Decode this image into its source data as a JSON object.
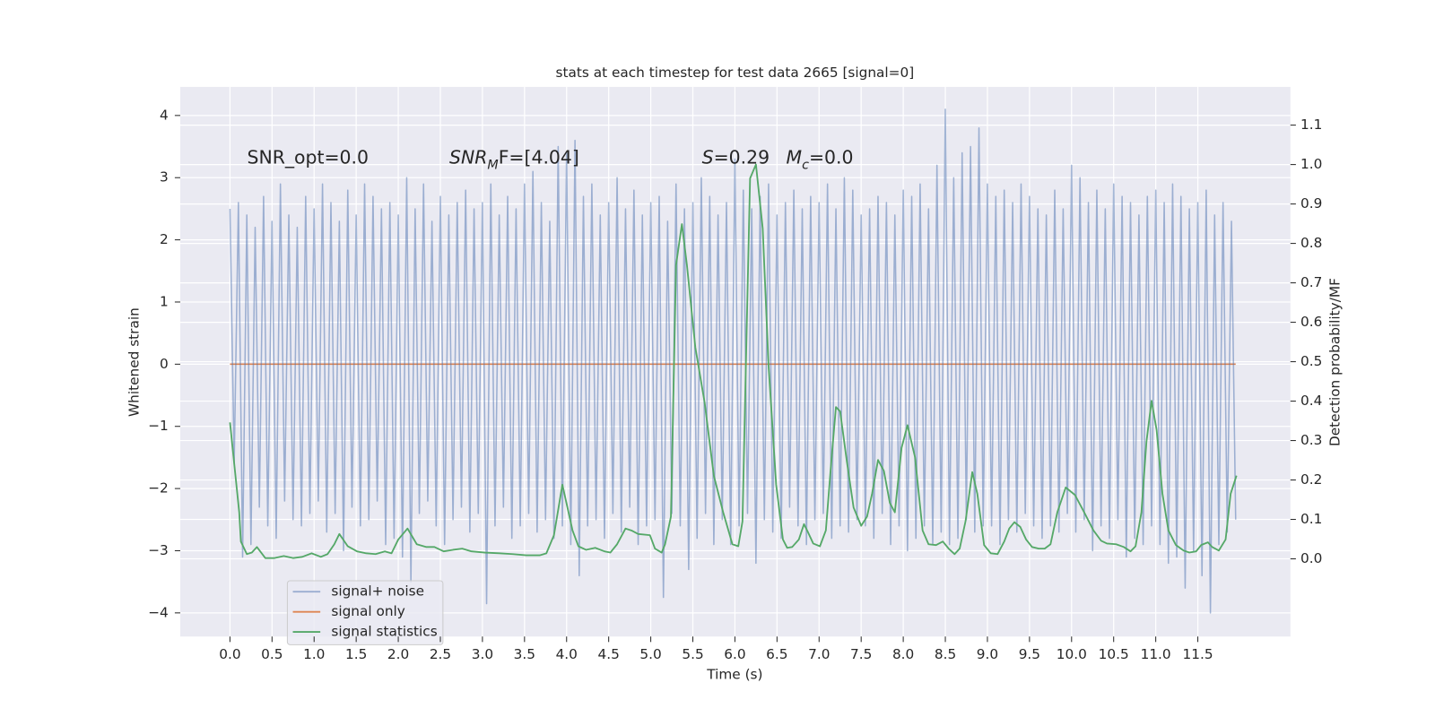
{
  "chart_data": {
    "type": "line",
    "title": "stats at each timestep for test data 2665 [signal=0]",
    "xlabel": "Time (s)",
    "ylabel": "Whitened strain",
    "y2label": "Detection probability/MF",
    "xlim": [
      -0.59,
      12.6
    ],
    "ylim": [
      -4.38,
      4.46
    ],
    "y2lim": [
      -0.197,
      1.197
    ],
    "xticks": [
      {
        "value": 0,
        "label": "0.0"
      },
      0.5,
      {
        "value": 1,
        "label": "1.0"
      },
      1.5,
      {
        "value": 2,
        "label": "2.0"
      },
      2.5,
      {
        "value": 3,
        "label": "3.0"
      },
      3.5,
      {
        "value": 4,
        "label": "4.0"
      },
      4.5,
      {
        "value": 5,
        "label": "5.0"
      },
      5.5,
      {
        "value": 6,
        "label": "6.0"
      },
      6.5,
      {
        "value": 7,
        "label": "7.0"
      },
      7.5,
      {
        "value": 8,
        "label": "8.0"
      },
      8.5,
      {
        "value": 9,
        "label": "9.0"
      },
      9.5,
      {
        "value": 10,
        "label": "10.0"
      },
      10.5,
      {
        "value": 11,
        "label": "11.0"
      },
      11.5
    ],
    "yticks": [
      {
        "value": -4,
        "label": "−4"
      },
      {
        "value": -3,
        "label": "−3"
      },
      {
        "value": -2,
        "label": "−2"
      },
      {
        "value": -1,
        "label": "−1"
      },
      0,
      1,
      2,
      3,
      4
    ],
    "y2ticks": [
      {
        "value": 0,
        "label": "0.0"
      },
      0.1,
      0.2,
      0.3,
      0.4,
      0.5,
      0.6,
      0.7,
      0.8,
      0.9,
      {
        "value": 1,
        "label": "1.0"
      },
      1.1
    ],
    "grid": true,
    "legend_loc": "lower left",
    "annotations": [
      [
        {
          "text": "SNR_opt=0.0"
        }
      ],
      [
        {
          "text": "SNR",
          "style": "italic"
        },
        {
          "text": "M",
          "style": "italic-sub"
        },
        {
          "text": "F=[4.04]"
        }
      ],
      [
        {
          "text": "S",
          "style": "italic"
        },
        {
          "text": "=0.29"
        }
      ],
      [
        {
          "text": "M",
          "style": "italic"
        },
        {
          "text": "c",
          "style": "italic-sub"
        },
        {
          "text": "=0.0"
        }
      ]
    ],
    "series": [
      {
        "name": "signal+ noise",
        "color": "#4c72b0",
        "alpha": 0.5,
        "axis": "y",
        "x": [
          0,
          0.05,
          0.1,
          0.15,
          0.2,
          0.25,
          0.3,
          0.35,
          0.4,
          0.45,
          0.5,
          0.55,
          0.6,
          0.65,
          0.7,
          0.75,
          0.8,
          0.85,
          0.9,
          0.95,
          1,
          1.05,
          1.1,
          1.15,
          1.2,
          1.25,
          1.3,
          1.35,
          1.4,
          1.45,
          1.5,
          1.55,
          1.6,
          1.65,
          1.7,
          1.75,
          1.8,
          1.85,
          1.9,
          1.95,
          2,
          2.05,
          2.1,
          2.15,
          2.2,
          2.25,
          2.3,
          2.35,
          2.4,
          2.45,
          2.5,
          2.55,
          2.6,
          2.65,
          2.7,
          2.75,
          2.8,
          2.85,
          2.9,
          2.95,
          3,
          3.05,
          3.1,
          3.15,
          3.2,
          3.25,
          3.3,
          3.35,
          3.4,
          3.45,
          3.5,
          3.55,
          3.6,
          3.65,
          3.7,
          3.75,
          3.8,
          3.85,
          3.9,
          3.95,
          4,
          4.05,
          4.1,
          4.15,
          4.2,
          4.25,
          4.3,
          4.35,
          4.4,
          4.45,
          4.5,
          4.55,
          4.6,
          4.65,
          4.7,
          4.75,
          4.8,
          4.85,
          4.9,
          4.95,
          5,
          5.05,
          5.1,
          5.15,
          5.2,
          5.25,
          5.3,
          5.35,
          5.4,
          5.45,
          5.5,
          5.55,
          5.6,
          5.65,
          5.7,
          5.75,
          5.8,
          5.85,
          5.9,
          5.95,
          6,
          6.05,
          6.1,
          6.15,
          6.2,
          6.25,
          6.3,
          6.35,
          6.4,
          6.45,
          6.5,
          6.55,
          6.6,
          6.65,
          6.7,
          6.75,
          6.8,
          6.85,
          6.9,
          6.95,
          7,
          7.05,
          7.1,
          7.15,
          7.2,
          7.25,
          7.3,
          7.35,
          7.4,
          7.45,
          7.5,
          7.55,
          7.6,
          7.65,
          7.7,
          7.75,
          7.8,
          7.85,
          7.9,
          7.95,
          8,
          8.05,
          8.1,
          8.15,
          8.2,
          8.25,
          8.3,
          8.35,
          8.4,
          8.45,
          8.5,
          8.55,
          8.6,
          8.65,
          8.7,
          8.75,
          8.8,
          8.85,
          8.9,
          8.95,
          9,
          9.05,
          9.1,
          9.15,
          9.2,
          9.25,
          9.3,
          9.35,
          9.4,
          9.45,
          9.5,
          9.55,
          9.6,
          9.65,
          9.7,
          9.75,
          9.8,
          9.85,
          9.9,
          9.95,
          10,
          10.05,
          10.1,
          10.15,
          10.2,
          10.25,
          10.3,
          10.35,
          10.4,
          10.45,
          10.5,
          10.55,
          10.6,
          10.65,
          10.7,
          10.75,
          10.8,
          10.85,
          10.9,
          10.95,
          11,
          11.05,
          11.1,
          11.15,
          11.2,
          11.25,
          11.3,
          11.35,
          11.4,
          11.45,
          11.5,
          11.55,
          11.6,
          11.65,
          11.7,
          11.75,
          11.8,
          11.85,
          11.9,
          11.95
        ],
        "values": [
          2.5,
          -1.6,
          2.6,
          -3.1,
          2.4,
          -2.9,
          2.2,
          -2.3,
          2.7,
          -2.6,
          2.3,
          -2.8,
          2.9,
          -2.2,
          2.4,
          -2.5,
          2.2,
          -2.6,
          2.7,
          -2.4,
          2.5,
          -2.2,
          2.9,
          -2.7,
          2.6,
          -2.4,
          2.3,
          -3.0,
          2.8,
          -2.3,
          2.4,
          -2.6,
          2.9,
          -2.5,
          2.7,
          -2.2,
          2.5,
          -2.9,
          2.6,
          -2.8,
          2.4,
          -3.1,
          3.0,
          -3.5,
          2.5,
          -2.4,
          2.9,
          -2.2,
          2.3,
          -2.6,
          2.7,
          -2.9,
          2.4,
          -2.5,
          2.6,
          -2.3,
          2.8,
          -2.7,
          2.5,
          -2.4,
          2.6,
          -3.85,
          2.9,
          -2.6,
          2.4,
          -2.3,
          2.7,
          -2.8,
          2.5,
          -2.6,
          2.9,
          -2.4,
          3.1,
          -2.7,
          2.6,
          -2.5,
          2.3,
          -2.8,
          3.5,
          -2.6,
          3.4,
          -2.9,
          3.6,
          -3.4,
          2.7,
          -2.6,
          2.9,
          -2.5,
          2.4,
          -2.8,
          2.6,
          -2.4,
          3.0,
          -2.7,
          2.5,
          -2.3,
          2.8,
          -2.9,
          2.4,
          -2.6,
          2.6,
          -2.5,
          2.7,
          -3.75,
          2.3,
          -2.4,
          2.9,
          -2.6,
          2.5,
          -3.3,
          2.6,
          -2.8,
          3.0,
          -2.4,
          2.7,
          -2.9,
          2.4,
          -2.5,
          2.6,
          -2.9,
          3.3,
          -2.6,
          2.8,
          -2.4,
          2.5,
          -3.2,
          2.7,
          -2.5,
          2.9,
          -2.7,
          2.4,
          -2.8,
          2.6,
          -2.3,
          2.8,
          -2.6,
          2.5,
          -2.9,
          2.7,
          -2.5,
          2.6,
          -2.4,
          2.9,
          -2.8,
          2.5,
          -2.6,
          3.0,
          -2.7,
          2.8,
          -2.5,
          2.4,
          -2.6,
          2.5,
          -2.8,
          2.7,
          -2.4,
          2.6,
          -2.9,
          2.4,
          -2.6,
          2.8,
          -3.0,
          2.7,
          -2.8,
          2.9,
          -2.6,
          2.5,
          -2.9,
          3.2,
          -2.7,
          4.1,
          -2.9,
          3.0,
          -2.8,
          3.4,
          -2.5,
          3.5,
          -2.7,
          3.8,
          -2.6,
          2.9,
          -2.6,
          2.7,
          -2.9,
          2.8,
          -2.5,
          2.6,
          -2.7,
          2.9,
          -2.4,
          2.7,
          -2.6,
          2.5,
          -2.8,
          2.4,
          -2.6,
          2.8,
          -2.7,
          2.5,
          -2.4,
          3.2,
          -2.7,
          3.0,
          -2.5,
          2.6,
          -3.0,
          2.8,
          -2.6,
          2.5,
          -2.8,
          2.9,
          -2.5,
          2.7,
          -3.1,
          2.6,
          -2.8,
          2.4,
          -2.9,
          2.7,
          -2.6,
          2.8,
          -2.9,
          2.6,
          -3.2,
          2.9,
          -3.1,
          2.7,
          -3.6,
          2.5,
          -3.0,
          2.6,
          -3.4,
          2.8,
          -4.0,
          2.4,
          -2.9,
          2.6,
          -2.7,
          2.3,
          -2.5
        ]
      },
      {
        "name": "signal only",
        "color": "#dd8452",
        "axis": "y",
        "x": [
          0,
          11.95
        ],
        "values": [
          0,
          0
        ]
      },
      {
        "name": "signal statistics",
        "color": "#55a868",
        "axis": "y2",
        "x": [
          0,
          0.11,
          0.13,
          0.2,
          0.26,
          0.32,
          0.42,
          0.53,
          0.64,
          0.75,
          0.86,
          0.97,
          1.08,
          1.16,
          1.24,
          1.3,
          1.4,
          1.51,
          1.62,
          1.73,
          1.84,
          1.92,
          2.0,
          2.11,
          2.22,
          2.33,
          2.43,
          2.54,
          2.65,
          2.76,
          2.87,
          3.03,
          3.2,
          3.36,
          3.52,
          3.68,
          3.76,
          3.85,
          3.95,
          4.07,
          4.14,
          4.23,
          4.34,
          4.45,
          4.52,
          4.6,
          4.7,
          4.77,
          4.85,
          4.99,
          5.05,
          5.13,
          5.17,
          5.24,
          5.3,
          5.37,
          5.43,
          5.53,
          5.64,
          5.75,
          5.86,
          5.97,
          6.04,
          6.09,
          6.13,
          6.18,
          6.25,
          6.33,
          6.4,
          6.49,
          6.57,
          6.62,
          6.68,
          6.76,
          6.82,
          6.87,
          6.93,
          7.01,
          7.08,
          7.14,
          7.2,
          7.25,
          7.33,
          7.41,
          7.5,
          7.57,
          7.63,
          7.7,
          7.77,
          7.84,
          7.9,
          7.98,
          8.05,
          8.14,
          8.23,
          8.3,
          8.39,
          8.47,
          8.54,
          8.61,
          8.67,
          8.74,
          8.82,
          8.88,
          8.96,
          9.04,
          9.12,
          9.2,
          9.26,
          9.32,
          9.39,
          9.46,
          9.53,
          9.61,
          9.68,
          9.75,
          9.83,
          9.93,
          10.04,
          10.15,
          10.26,
          10.35,
          10.42,
          10.53,
          10.62,
          10.7,
          10.76,
          10.83,
          10.89,
          10.95,
          11.01,
          11.08,
          11.15,
          11.24,
          11.33,
          11.4,
          11.48,
          11.54,
          11.62,
          11.67,
          11.75,
          11.83,
          11.89,
          11.96
        ],
        "values": [
          0.346,
          0.118,
          0.044,
          0.012,
          0.016,
          0.03,
          0.002,
          0.002,
          0.007,
          0.002,
          0.005,
          0.014,
          0.005,
          0.012,
          0.037,
          0.063,
          0.032,
          0.019,
          0.014,
          0.012,
          0.019,
          0.014,
          0.049,
          0.077,
          0.037,
          0.03,
          0.03,
          0.019,
          0.023,
          0.026,
          0.019,
          0.016,
          0.014,
          0.012,
          0.009,
          0.009,
          0.014,
          0.06,
          0.188,
          0.072,
          0.032,
          0.023,
          0.028,
          0.019,
          0.016,
          0.037,
          0.077,
          0.072,
          0.063,
          0.06,
          0.026,
          0.016,
          0.037,
          0.107,
          0.745,
          0.849,
          0.745,
          0.536,
          0.397,
          0.211,
          0.118,
          0.037,
          0.032,
          0.095,
          0.49,
          0.965,
          1.0,
          0.838,
          0.49,
          0.188,
          0.049,
          0.028,
          0.03,
          0.049,
          0.088,
          0.067,
          0.039,
          0.032,
          0.072,
          0.234,
          0.385,
          0.374,
          0.246,
          0.13,
          0.084,
          0.107,
          0.165,
          0.251,
          0.223,
          0.142,
          0.118,
          0.281,
          0.339,
          0.258,
          0.072,
          0.037,
          0.035,
          0.044,
          0.026,
          0.012,
          0.026,
          0.095,
          0.22,
          0.165,
          0.035,
          0.014,
          0.012,
          0.044,
          0.077,
          0.093,
          0.081,
          0.049,
          0.03,
          0.026,
          0.026,
          0.037,
          0.118,
          0.181,
          0.162,
          0.118,
          0.072,
          0.046,
          0.039,
          0.037,
          0.03,
          0.019,
          0.032,
          0.118,
          0.297,
          0.401,
          0.327,
          0.165,
          0.072,
          0.035,
          0.021,
          0.016,
          0.019,
          0.035,
          0.042,
          0.03,
          0.021,
          0.049,
          0.165,
          0.211
        ]
      }
    ]
  }
}
